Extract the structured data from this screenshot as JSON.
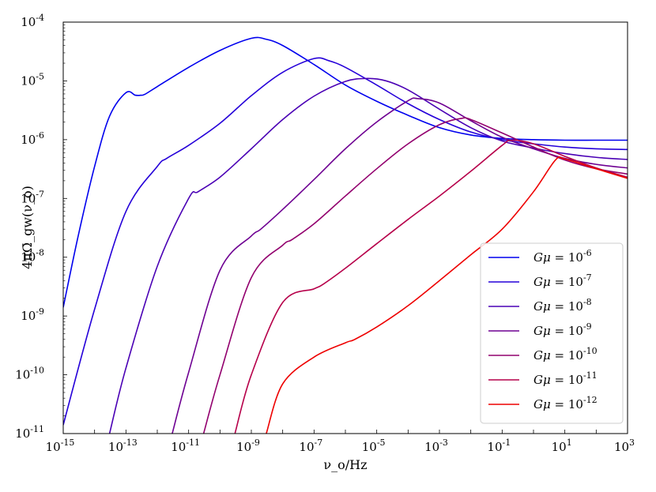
{
  "chart_data": {
    "type": "line",
    "xlabel": "ν_o/Hz",
    "ylabel": "4πΩ̄_gw(ν_o)",
    "xscale": "log",
    "yscale": "log",
    "xlim": [
      1e-15,
      1000.0
    ],
    "ylim": [
      1e-11,
      0.0001
    ],
    "grid": false,
    "legend_position": "lower right",
    "x_ticks": [
      {
        "base": "10",
        "exp": "-15"
      },
      {
        "base": "10",
        "exp": "-13"
      },
      {
        "base": "10",
        "exp": "-11"
      },
      {
        "base": "10",
        "exp": "-9"
      },
      {
        "base": "10",
        "exp": "-7"
      },
      {
        "base": "10",
        "exp": "-5"
      },
      {
        "base": "10",
        "exp": "-3"
      },
      {
        "base": "10",
        "exp": "-1"
      },
      {
        "base": "10",
        "exp": "1"
      },
      {
        "base": "10",
        "exp": "3"
      }
    ],
    "y_ticks": [
      {
        "base": "10",
        "exp": "-11"
      },
      {
        "base": "10",
        "exp": "-10"
      },
      {
        "base": "10",
        "exp": "-9"
      },
      {
        "base": "10",
        "exp": "-8"
      },
      {
        "base": "10",
        "exp": "-7"
      },
      {
        "base": "10",
        "exp": "-6"
      },
      {
        "base": "10",
        "exp": "-5"
      },
      {
        "base": "10",
        "exp": "-4"
      }
    ],
    "series": [
      {
        "name": "Gμ = 10^-6",
        "exp": "-6",
        "color": "#0000ee",
        "x": [
          1e-15,
          3e-15,
          1e-14,
          3e-14,
          1e-13,
          2e-13,
          3e-13,
          4e-13,
          1e-12,
          1e-11,
          1e-10,
          1e-09,
          3e-09,
          1e-08,
          1e-07,
          1e-06,
          1e-05,
          0.0001,
          0.001,
          0.01,
          0.1,
          1,
          10,
          100,
          1000
        ],
        "y": [
          1.4e-09,
          2.3e-08,
          3.5e-07,
          2.5e-06,
          6.3e-06,
          5.7e-06,
          5.7e-06,
          5.9e-06,
          8e-06,
          1.7e-05,
          3.3e-05,
          5.3e-05,
          5.1e-05,
          4e-05,
          1.9e-05,
          8.5e-06,
          4.5e-06,
          2.6e-06,
          1.6e-06,
          1.2e-06,
          1.05e-06,
          1e-06,
          9.8e-07,
          9.8e-07,
          9.8e-07
        ]
      },
      {
        "name": "Gμ = 10^-7",
        "exp": "-7",
        "color": "#2500d9",
        "x": [
          1e-15,
          1e-14,
          1e-13,
          1e-12,
          2e-12,
          1e-11,
          1e-10,
          1e-09,
          1e-08,
          1e-07,
          3e-07,
          1e-06,
          1e-05,
          0.0001,
          0.001,
          0.01,
          0.1,
          1,
          10,
          100,
          1000
        ],
        "y": [
          1.4e-11,
          1.3e-09,
          6e-08,
          3.5e-07,
          4.8e-07,
          8e-07,
          1.9e-06,
          5.6e-06,
          1.4e-05,
          2.4e-05,
          2.2e-05,
          1.7e-05,
          8.5e-06,
          4.1e-06,
          2.2e-06,
          1.35e-06,
          1e-06,
          8.5e-07,
          7.5e-07,
          7e-07,
          6.8e-07
        ]
      },
      {
        "name": "Gμ = 10^-8",
        "exp": "-8",
        "color": "#4a00b5",
        "x": [
          3e-14,
          1e-13,
          1e-12,
          1e-11,
          2e-11,
          1e-10,
          1e-09,
          1e-08,
          1e-07,
          1e-06,
          5e-06,
          2e-05,
          0.0001,
          0.001,
          0.01,
          0.1,
          1,
          10,
          100,
          1000
        ],
        "y": [
          1e-11,
          1.3e-10,
          7e-09,
          1e-07,
          1.3e-07,
          2.3e-07,
          7e-07,
          2.2e-06,
          5.5e-06,
          9.8e-06,
          1.1e-05,
          1e-05,
          7e-06,
          3.3e-06,
          1.6e-06,
          9.5e-07,
          7.2e-07,
          5.8e-07,
          5e-07,
          4.6e-07
        ]
      },
      {
        "name": "Gμ = 10^-9",
        "exp": "-9",
        "color": "#6e0092",
        "x": [
          3e-12,
          1e-11,
          1e-10,
          1e-09,
          2e-09,
          1e-08,
          1e-07,
          1e-06,
          1e-05,
          0.0001,
          0.0002,
          0.001,
          0.01,
          0.1,
          1,
          10,
          100,
          1000
        ],
        "y": [
          1e-11,
          1.1e-10,
          6e-09,
          2.3e-08,
          3e-08,
          6.5e-08,
          2.1e-07,
          7e-07,
          2e-06,
          4.6e-06,
          5e-06,
          4.2e-06,
          2.1e-06,
          1.1e-06,
          7e-07,
          4.8e-07,
          3.8e-07,
          3.3e-07
        ]
      },
      {
        "name": "Gμ = 10^-10",
        "exp": "-10",
        "color": "#92006e",
        "x": [
          3e-11,
          1e-10,
          1e-09,
          1e-08,
          2e-08,
          1e-07,
          1e-06,
          1e-05,
          0.0001,
          0.001,
          0.005,
          0.01,
          0.1,
          1,
          10,
          100,
          1000
        ],
        "y": [
          1e-11,
          1e-10,
          4.5e-09,
          1.6e-08,
          2e-08,
          3.7e-08,
          1.1e-07,
          3.2e-07,
          8.5e-07,
          1.8e-06,
          2.3e-06,
          2.2e-06,
          1.3e-06,
          7.5e-07,
          4.5e-07,
          3.2e-07,
          2.6e-07
        ]
      },
      {
        "name": "Gμ = 10^-11",
        "exp": "-11",
        "color": "#b6004a",
        "x": [
          3e-10,
          1e-09,
          1e-08,
          1e-07,
          2e-07,
          1e-06,
          1e-05,
          0.0001,
          0.001,
          0.01,
          0.1,
          0.2,
          1,
          10,
          100,
          1000
        ],
        "y": [
          1e-11,
          1e-10,
          1.7e-09,
          2.9e-09,
          3.5e-09,
          6.5e-09,
          1.7e-08,
          4.4e-08,
          1.1e-07,
          2.9e-07,
          8e-07,
          9.8e-07,
          8.5e-07,
          5.2e-07,
          3.3e-07,
          2.3e-07
        ]
      },
      {
        "name": "Gμ = 10^-12",
        "exp": "-12",
        "color": "#ee0000",
        "x": [
          3e-09,
          1e-08,
          1e-07,
          1e-06,
          2e-06,
          1e-05,
          0.0001,
          0.001,
          0.01,
          0.1,
          1,
          5,
          10,
          100,
          1000
        ],
        "y": [
          1e-11,
          7e-11,
          2e-10,
          3.5e-10,
          4e-10,
          6.5e-10,
          1.5e-09,
          4e-09,
          1.1e-08,
          3e-08,
          1.3e-07,
          4.5e-07,
          4.7e-07,
          3.2e-07,
          2.2e-07
        ]
      }
    ]
  }
}
